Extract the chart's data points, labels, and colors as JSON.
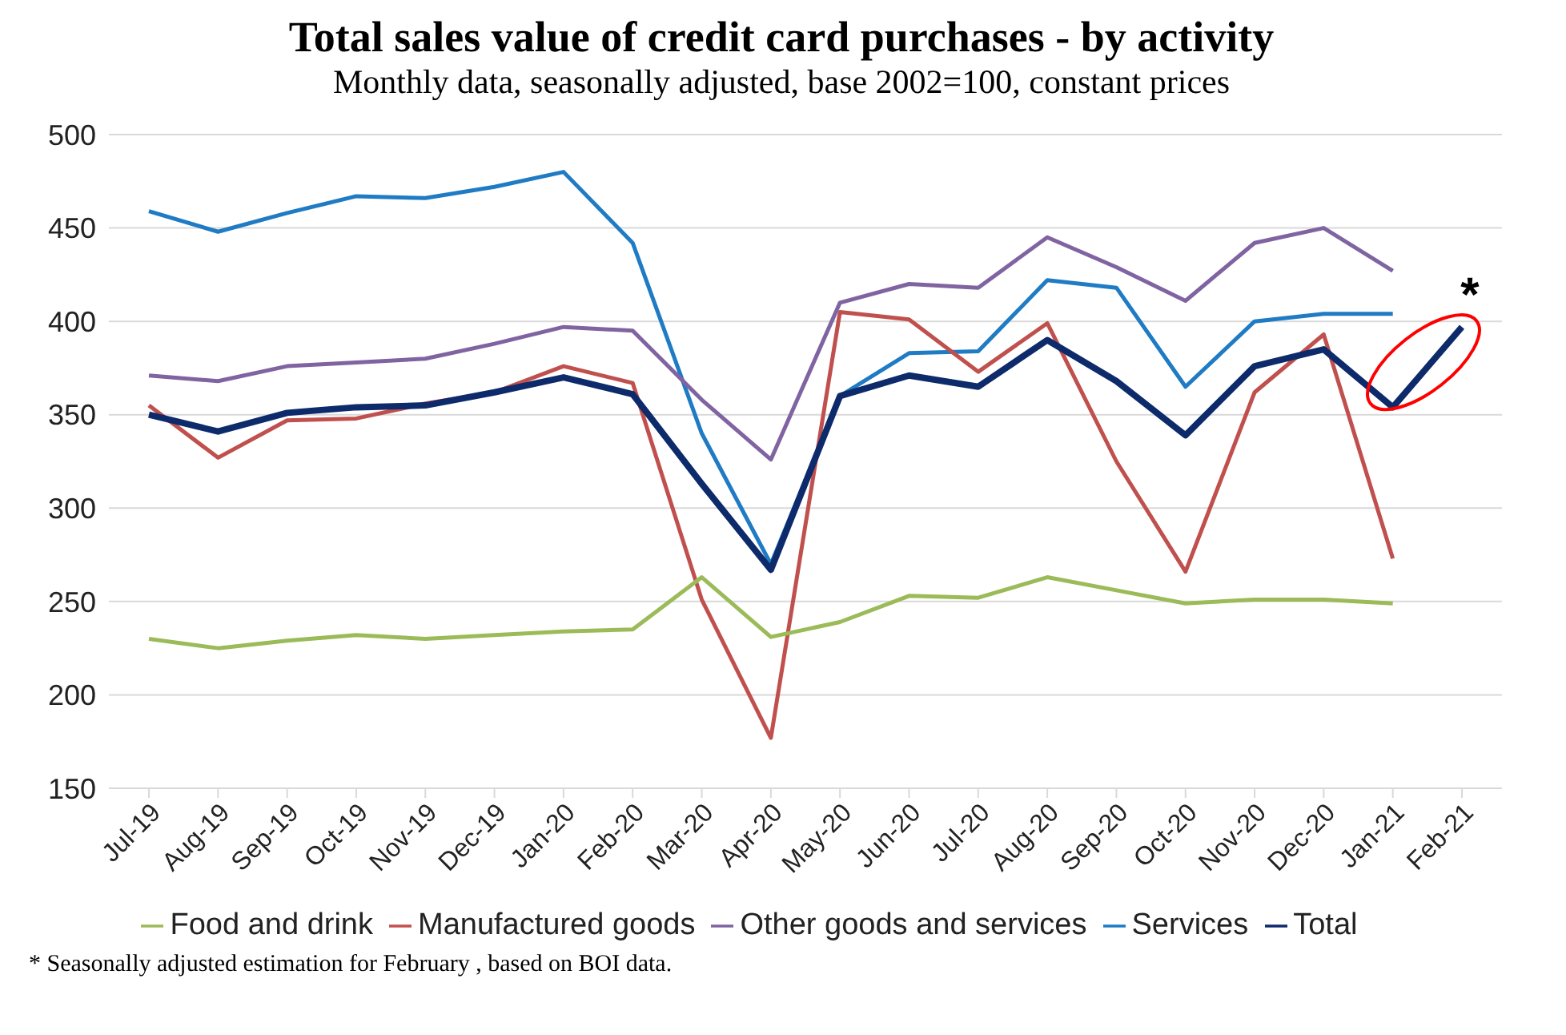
{
  "chart_data": {
    "type": "line",
    "title": "Total sales value of credit card purchases - by activity",
    "subtitle": "Monthly data, seasonally adjusted, base 2002=100, constant prices",
    "categories": [
      "Jul-19",
      "Aug-19",
      "Sep-19",
      "Oct-19",
      "Nov-19",
      "Dec-19",
      "Jan-20",
      "Feb-20",
      "Mar-20",
      "Apr-20",
      "May-20",
      "Jun-20",
      "Jul-20",
      "Aug-20",
      "Sep-20",
      "Oct-20",
      "Nov-20",
      "Dec-20",
      "Jan-21",
      "Feb-21"
    ],
    "series": [
      {
        "name": "Services",
        "color": "#1f7bc4",
        "values": [
          459,
          448,
          458,
          467,
          466,
          472,
          480,
          442,
          340,
          270,
          360,
          383,
          384,
          422,
          418,
          365,
          400,
          404,
          404,
          null
        ]
      },
      {
        "name": "Manufactured goods",
        "color": "#c0504d",
        "values": [
          355,
          327,
          347,
          348,
          356,
          362,
          376,
          367,
          251,
          177,
          405,
          401,
          373,
          399,
          325,
          266,
          362,
          393,
          273,
          null
        ]
      },
      {
        "name": "Food and drink",
        "color": "#9bbb59",
        "values": [
          230,
          225,
          229,
          232,
          230,
          232,
          234,
          235,
          263,
          231,
          239,
          253,
          252,
          263,
          256,
          249,
          251,
          251,
          249,
          null
        ]
      },
      {
        "name": "Other goods and services",
        "color": "#8064a2",
        "values": [
          371,
          368,
          376,
          378,
          380,
          388,
          397,
          395,
          358,
          326,
          410,
          420,
          418,
          445,
          429,
          411,
          442,
          450,
          427,
          null
        ]
      },
      {
        "name": "Total",
        "color": "#0d2a6b",
        "values": [
          350,
          341,
          351,
          354,
          355,
          362,
          370,
          361,
          313,
          267,
          360,
          371,
          365,
          390,
          368,
          339,
          376,
          385,
          354,
          397
        ]
      }
    ],
    "ylim": [
      150,
      500
    ],
    "yticks": [
      150,
      200,
      250,
      300,
      350,
      400,
      450,
      500
    ],
    "grid": "y",
    "legend": "bottom",
    "marker": "none",
    "line_style": "solid",
    "annotations": [
      {
        "text": "*",
        "x": "Feb-21",
        "y": 397
      },
      "* Seasonally adjusted estimation for February , based on BOI data."
    ]
  }
}
